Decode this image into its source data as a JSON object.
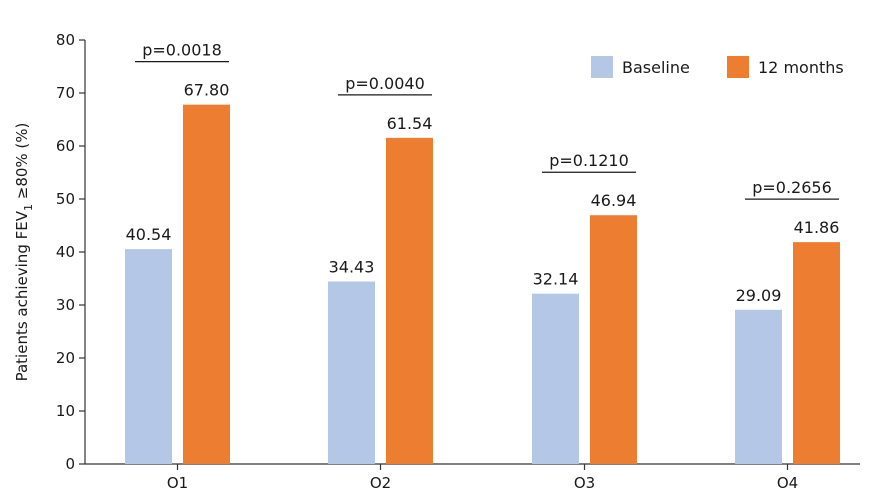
{
  "chart_data": {
    "type": "bar",
    "categories": [
      "O1",
      "O2",
      "O3",
      "O4"
    ],
    "series": [
      {
        "name": "Baseline",
        "values": [
          40.54,
          34.43,
          32.14,
          29.09
        ],
        "color": "#b4c7e7"
      },
      {
        "name": "12 months",
        "values": [
          67.8,
          61.54,
          46.94,
          41.86
        ],
        "color": "#ed7d31"
      }
    ],
    "data_labels": [
      [
        "40.54",
        "34.43",
        "32.14",
        "29.09"
      ],
      [
        "67.80",
        "61.54",
        "46.94",
        "41.86"
      ]
    ],
    "p_values": [
      "p=0.0018",
      "p=0.0040",
      "p=0.1210",
      "p=0.2656"
    ],
    "ylabel": {
      "prefix": "Patients achieving FEV",
      "subscript": "1",
      "suffix": " ≥80% (%)"
    },
    "ylim": [
      0,
      80
    ],
    "yticks": [
      0,
      10,
      20,
      30,
      40,
      50,
      60,
      70,
      80
    ],
    "legend_position": "top-right",
    "grid": false
  }
}
